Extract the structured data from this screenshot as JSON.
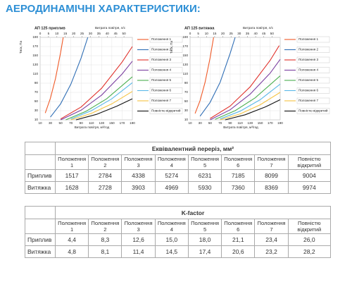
{
  "header": {
    "title": "АЕРОДИНАМІЧНІ ХАРАКТЕРИСТИКИ:"
  },
  "chart_data": [
    {
      "type": "line",
      "title": "АП 125 приплив",
      "ylabel": "Тиск, Па",
      "xlabel": "Витрата повітря, м³/год",
      "x2label": "Витрата повітря, л/с",
      "xlim": [
        10,
        190
      ],
      "xticks": [
        10,
        30,
        50,
        70,
        90,
        110,
        130,
        150,
        170,
        190
      ],
      "x2lim": [
        0,
        55
      ],
      "x2ticks": [
        0,
        5,
        10,
        15,
        20,
        25,
        30,
        35,
        40,
        45,
        50
      ],
      "ylim": [
        10,
        190
      ],
      "yticks": [
        10,
        30,
        50,
        70,
        90,
        110,
        130,
        150,
        170,
        190
      ],
      "grid": true,
      "series": [
        {
          "name": "Положення 1",
          "color": "#f05a28",
          "x": [
            20,
            30,
            40,
            50,
            55
          ],
          "values": [
            25,
            57,
            100,
            157,
            190
          ]
        },
        {
          "name": "Положення 2",
          "color": "#2f6eb5",
          "x": [
            30,
            50,
            70,
            90,
            103
          ],
          "values": [
            16,
            45,
            88,
            145,
            190
          ]
        },
        {
          "name": "Положення 3",
          "color": "#e0312b",
          "x": [
            50,
            90,
            130,
            170,
            190
          ],
          "values": [
            12,
            38,
            79,
            136,
            170
          ]
        },
        {
          "name": "Положення 4",
          "color": "#7b3fa0",
          "x": [
            50,
            90,
            130,
            170,
            190
          ],
          "values": [
            10,
            31,
            64,
            110,
            138
          ]
        },
        {
          "name": "Положення 5",
          "color": "#4caf50",
          "x": [
            60,
            100,
            140,
            190
          ],
          "values": [
            10,
            29,
            56,
            104
          ]
        },
        {
          "name": "Положення 6",
          "color": "#5bb8e8",
          "x": [
            70,
            110,
            150,
            190
          ],
          "values": [
            12,
            30,
            56,
            91
          ]
        },
        {
          "name": "Положення 7",
          "color": "#f5c342",
          "x": [
            70,
            110,
            150,
            190
          ],
          "values": [
            10,
            24,
            45,
            72
          ]
        },
        {
          "name": "Повністю відкритий",
          "color": "#111111",
          "x": [
            80,
            120,
            160,
            190
          ],
          "values": [
            10,
            22,
            40,
            56
          ]
        }
      ]
    },
    {
      "type": "line",
      "title": "АП 125 витяжка",
      "ylabel": "Тиск, Па",
      "xlabel": "Витрата повітря, м³/год",
      "x2label": "Витрата повітря, л/с",
      "xlim": [
        10,
        190
      ],
      "xticks": [
        10,
        30,
        50,
        70,
        90,
        110,
        130,
        150,
        170,
        190
      ],
      "x2lim": [
        0,
        55
      ],
      "x2ticks": [
        0,
        5,
        10,
        15,
        20,
        25,
        30,
        35,
        40,
        45,
        50
      ],
      "ylim": [
        10,
        190
      ],
      "yticks": [
        10,
        30,
        50,
        70,
        90,
        110,
        130,
        150,
        170,
        190
      ],
      "grid": true,
      "series": [
        {
          "name": "Положення 1",
          "color": "#f05a28",
          "x": [
            20,
            30,
            40,
            50,
            57
          ],
          "values": [
            24,
            52,
            92,
            145,
            190
          ]
        },
        {
          "name": "Положення 2",
          "color": "#2f6eb5",
          "x": [
            30,
            50,
            70,
            90,
            100
          ],
          "values": [
            18,
            48,
            92,
            155,
            190
          ]
        },
        {
          "name": "Положення 3",
          "color": "#e0312b",
          "x": [
            50,
            90,
            130,
            170,
            188
          ],
          "values": [
            13,
            40,
            82,
            140,
            172
          ]
        },
        {
          "name": "Положення 4",
          "color": "#7b3fa0",
          "x": [
            50,
            90,
            130,
            170,
            190
          ],
          "values": [
            10,
            32,
            66,
            112,
            142
          ]
        },
        {
          "name": "Положення 5",
          "color": "#4caf50",
          "x": [
            60,
            100,
            140,
            190
          ],
          "values": [
            11,
            30,
            58,
            106
          ]
        },
        {
          "name": "Положення 6",
          "color": "#5bb8e8",
          "x": [
            70,
            110,
            150,
            190
          ],
          "values": [
            12,
            29,
            54,
            88
          ]
        },
        {
          "name": "Положення 7",
          "color": "#f5c342",
          "x": [
            70,
            110,
            150,
            190
          ],
          "values": [
            10,
            23,
            43,
            70
          ]
        },
        {
          "name": "Повністю відкритий",
          "color": "#111111",
          "x": [
            80,
            120,
            160,
            190
          ],
          "values": [
            10,
            21,
            38,
            54
          ]
        }
      ]
    }
  ],
  "tables": [
    {
      "title": "Еквівалентний переріз, мм²",
      "columns": [
        "Положення 1",
        "Положення 2",
        "Положення 3",
        "Положення 4",
        "Положення 5",
        "Положення 6",
        "Положення 7",
        "Повністю відкритий"
      ],
      "rows": [
        {
          "label": "Приплив",
          "values": [
            1517,
            2784,
            4338,
            5274,
            6231,
            7185,
            8099,
            9004
          ]
        },
        {
          "label": "Витяжка",
          "values": [
            1628,
            2728,
            3903,
            4969,
            5930,
            7360,
            8369,
            9974
          ]
        }
      ]
    },
    {
      "title": "K-factor",
      "columns": [
        "Положення 1",
        "Положення 2",
        "Положення 3",
        "Положення 4",
        "Положення 5",
        "Положення 6",
        "Положення 7",
        "Повністю відкритий"
      ],
      "rows": [
        {
          "label": "Приплив",
          "values": [
            "4,4",
            "8,3",
            "12,6",
            "15,0",
            "18,0",
            "21,1",
            "23,4",
            "26,0"
          ]
        },
        {
          "label": "Витяжка",
          "values": [
            "4,8",
            "8,1",
            "11,4",
            "14,5",
            "17,4",
            "20,6",
            "23,2",
            "28,2"
          ]
        }
      ]
    }
  ]
}
